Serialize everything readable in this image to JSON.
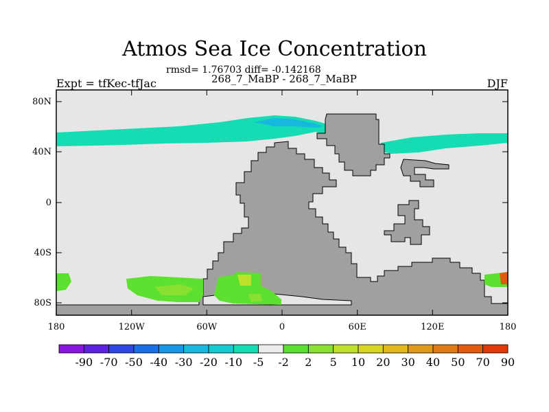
{
  "header": {
    "title": "Atmos Sea Ice Concentration",
    "stats": "rmsd= 1.76703 diff= -0.142168",
    "comparison": "268_7_MaBP - 268_7_MaBP",
    "experiment": "Expt = tfKec-tfJac",
    "season": "DJF"
  },
  "map": {
    "lat_ticks": [
      "80N",
      "40N",
      "0",
      "40S",
      "80S"
    ],
    "lon_ticks": [
      "180",
      "120W",
      "60W",
      "0",
      "60E",
      "120E",
      "180"
    ]
  },
  "colorbar": {
    "labels": [
      "-90",
      "-70",
      "-50",
      "-40",
      "-30",
      "-20",
      "-10",
      "-5",
      "-2",
      "2",
      "5",
      "10",
      "20",
      "30",
      "40",
      "50",
      "70",
      "90"
    ],
    "colors": [
      "#8a17e0",
      "#5b22e0",
      "#2f46e3",
      "#1a6ee6",
      "#1a96e6",
      "#17b8e0",
      "#14cbd0",
      "#16dcb4",
      "#ececec",
      "#5ee030",
      "#8ae030",
      "#bde02a",
      "#d8d622",
      "#e0b81c",
      "#e09a18",
      "#e07a14",
      "#e05a10",
      "#e03a0a"
    ]
  }
}
